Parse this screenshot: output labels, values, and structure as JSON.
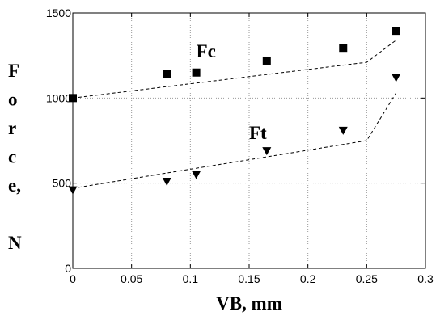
{
  "chart_data": {
    "type": "scatter",
    "xlabel": "VB, mm",
    "ylabel": "Force, N",
    "ylabel_lines": [
      "F",
      "o",
      "r",
      "c",
      "e,",
      "",
      "N"
    ],
    "xlim": [
      0,
      0.3
    ],
    "ylim": [
      0,
      1500
    ],
    "xticks": [
      0,
      0.05,
      0.1,
      0.15,
      0.2,
      0.25,
      0.3
    ],
    "xtick_labels": [
      "0",
      "0.05",
      "0.1",
      "0.15",
      "0.2",
      "0.25",
      "0.3"
    ],
    "yticks": [
      0,
      500,
      1000,
      1500
    ],
    "ytick_labels": [
      "0",
      "500",
      "1000",
      "1500"
    ],
    "grid": true,
    "series": [
      {
        "name": "Fc",
        "marker": "square",
        "x": [
          0,
          0.08,
          0.105,
          0.165,
          0.23,
          0.275
        ],
        "y": [
          1000,
          1140,
          1150,
          1220,
          1295,
          1395
        ],
        "fit_x": [
          0,
          0.25,
          0.275
        ],
        "fit_y": [
          1000,
          1210,
          1340
        ]
      },
      {
        "name": "Ft",
        "marker": "triangle-down",
        "x": [
          0,
          0.08,
          0.105,
          0.165,
          0.23,
          0.275
        ],
        "y": [
          460,
          510,
          550,
          690,
          810,
          1120
        ],
        "fit_x": [
          0,
          0.25,
          0.275
        ],
        "fit_y": [
          470,
          750,
          1030
        ]
      }
    ]
  },
  "colors": {
    "marker": "#000000",
    "grid": "#9a9a9a",
    "axis": "#000000"
  }
}
